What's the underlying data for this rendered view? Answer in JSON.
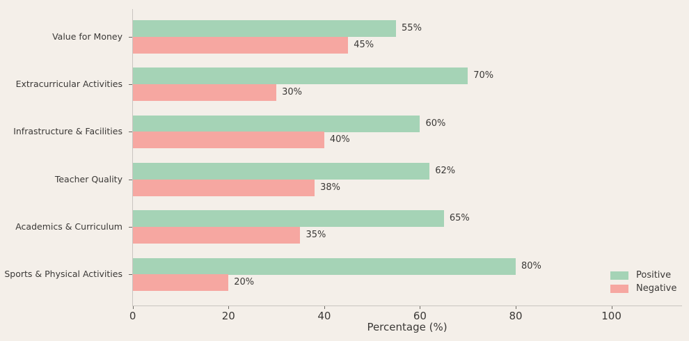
{
  "figure": {
    "background_color": "#f4efe9",
    "text_color": "#3a3836",
    "spine_color": "#c9c5c0"
  },
  "chart_data": {
    "type": "bar",
    "orientation": "horizontal",
    "title": "",
    "xlabel": "Percentage (%)",
    "ylabel": "",
    "categories": [
      "Value for Money",
      "Extracurricular Activities",
      "Infrastructure & Facilities",
      "Teacher Quality",
      "Academics & Curriculum",
      "Sports & Physical Activities"
    ],
    "series": [
      {
        "name": "Positive",
        "color": "#a5d3b6",
        "values": [
          55,
          70,
          60,
          62,
          65,
          80
        ]
      },
      {
        "name": "Negative",
        "color": "#f6a7a1",
        "values": [
          45,
          30,
          40,
          38,
          35,
          20
        ]
      }
    ],
    "value_label_suffix": "%",
    "xlim": [
      0,
      114.8
    ],
    "xticks": [
      0,
      20,
      40,
      60,
      80,
      100
    ],
    "grid": false,
    "legend_position": "lower right"
  }
}
